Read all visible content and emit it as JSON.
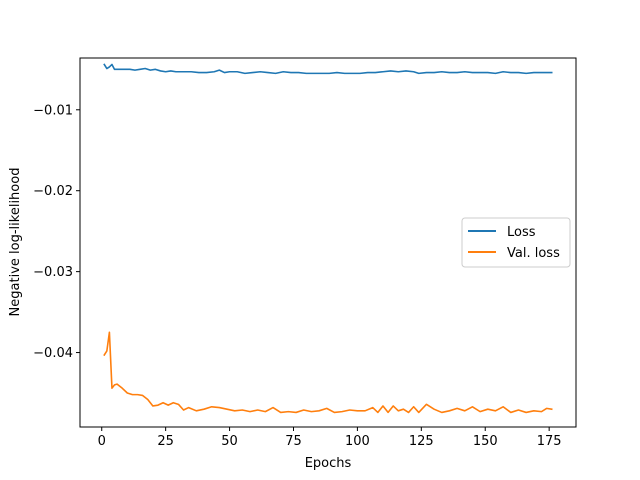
{
  "chart_data": {
    "type": "line",
    "title": "",
    "xlabel": "Epochs",
    "ylabel": "Negative log-likelihood",
    "xlim": [
      -8.5,
      185.5
    ],
    "ylim": [
      -0.0492,
      -0.0036
    ],
    "xticks": [
      0,
      25,
      50,
      75,
      100,
      125,
      150,
      175
    ],
    "xtick_labels": [
      "0",
      "25",
      "50",
      "75",
      "100",
      "125",
      "150",
      "175"
    ],
    "yticks": [
      -0.01,
      -0.02,
      -0.03,
      -0.04
    ],
    "ytick_labels": [
      "−0.01",
      "−0.02",
      "−0.03",
      "−0.04"
    ],
    "grid": false,
    "legend_position": "center-right",
    "series": [
      {
        "name": "Loss",
        "color": "#1f77b4",
        "points": [
          [
            1,
            -0.0044
          ],
          [
            2,
            -0.0049
          ],
          [
            3,
            -0.0047
          ],
          [
            4,
            -0.0044
          ],
          [
            5,
            -0.005
          ],
          [
            7,
            -0.005
          ],
          [
            9,
            -0.005
          ],
          [
            11,
            -0.005
          ],
          [
            13,
            -0.0051
          ],
          [
            15,
            -0.005
          ],
          [
            17,
            -0.0049
          ],
          [
            19,
            -0.0051
          ],
          [
            21,
            -0.005
          ],
          [
            23,
            -0.0052
          ],
          [
            25,
            -0.0053
          ],
          [
            27,
            -0.0052
          ],
          [
            29,
            -0.0053
          ],
          [
            32,
            -0.0053
          ],
          [
            35,
            -0.0053
          ],
          [
            38,
            -0.0054
          ],
          [
            41,
            -0.0054
          ],
          [
            44,
            -0.0053
          ],
          [
            46,
            -0.0051
          ],
          [
            48,
            -0.0054
          ],
          [
            50,
            -0.0053
          ],
          [
            53,
            -0.0053
          ],
          [
            56,
            -0.0055
          ],
          [
            59,
            -0.0054
          ],
          [
            62,
            -0.0053
          ],
          [
            65,
            -0.0054
          ],
          [
            68,
            -0.0055
          ],
          [
            71,
            -0.0053
          ],
          [
            74,
            -0.0054
          ],
          [
            77,
            -0.0054
          ],
          [
            80,
            -0.0055
          ],
          [
            83,
            -0.0055
          ],
          [
            86,
            -0.0055
          ],
          [
            89,
            -0.0055
          ],
          [
            92,
            -0.0054
          ],
          [
            95,
            -0.0055
          ],
          [
            98,
            -0.0055
          ],
          [
            101,
            -0.0055
          ],
          [
            104,
            -0.0054
          ],
          [
            107,
            -0.0054
          ],
          [
            110,
            -0.0053
          ],
          [
            113,
            -0.0052
          ],
          [
            116,
            -0.0053
          ],
          [
            119,
            -0.0052
          ],
          [
            122,
            -0.0053
          ],
          [
            124,
            -0.0055
          ],
          [
            127,
            -0.0054
          ],
          [
            130,
            -0.0054
          ],
          [
            133,
            -0.0053
          ],
          [
            136,
            -0.0054
          ],
          [
            139,
            -0.0054
          ],
          [
            142,
            -0.0053
          ],
          [
            145,
            -0.0054
          ],
          [
            148,
            -0.0054
          ],
          [
            151,
            -0.0054
          ],
          [
            154,
            -0.0055
          ],
          [
            157,
            -0.0053
          ],
          [
            160,
            -0.0054
          ],
          [
            163,
            -0.0054
          ],
          [
            166,
            -0.0055
          ],
          [
            169,
            -0.0054
          ],
          [
            172,
            -0.0054
          ],
          [
            176,
            -0.0054
          ]
        ]
      },
      {
        "name": "Val. loss",
        "color": "#ff7f0e",
        "points": [
          [
            1,
            -0.0403
          ],
          [
            2,
            -0.0398
          ],
          [
            3,
            -0.0375
          ],
          [
            4,
            -0.0444
          ],
          [
            5,
            -0.044
          ],
          [
            6,
            -0.0439
          ],
          [
            8,
            -0.0444
          ],
          [
            10,
            -0.045
          ],
          [
            12,
            -0.0452
          ],
          [
            14,
            -0.0452
          ],
          [
            16,
            -0.0453
          ],
          [
            18,
            -0.0458
          ],
          [
            20,
            -0.0466
          ],
          [
            22,
            -0.0465
          ],
          [
            24,
            -0.0462
          ],
          [
            26,
            -0.0465
          ],
          [
            28,
            -0.0462
          ],
          [
            30,
            -0.0464
          ],
          [
            32,
            -0.0471
          ],
          [
            34,
            -0.0468
          ],
          [
            37,
            -0.0472
          ],
          [
            40,
            -0.047
          ],
          [
            43,
            -0.0467
          ],
          [
            46,
            -0.0468
          ],
          [
            49,
            -0.047
          ],
          [
            52,
            -0.0472
          ],
          [
            55,
            -0.0471
          ],
          [
            58,
            -0.0473
          ],
          [
            61,
            -0.0471
          ],
          [
            64,
            -0.0473
          ],
          [
            67,
            -0.0468
          ],
          [
            70,
            -0.0474
          ],
          [
            73,
            -0.0473
          ],
          [
            76,
            -0.0474
          ],
          [
            79,
            -0.0471
          ],
          [
            82,
            -0.0473
          ],
          [
            85,
            -0.0472
          ],
          [
            88,
            -0.0469
          ],
          [
            91,
            -0.0474
          ],
          [
            94,
            -0.0473
          ],
          [
            97,
            -0.0471
          ],
          [
            100,
            -0.0472
          ],
          [
            103,
            -0.0472
          ],
          [
            106,
            -0.0468
          ],
          [
            108,
            -0.0474
          ],
          [
            110,
            -0.0466
          ],
          [
            112,
            -0.0474
          ],
          [
            114,
            -0.0466
          ],
          [
            116,
            -0.0472
          ],
          [
            118,
            -0.047
          ],
          [
            120,
            -0.0474
          ],
          [
            122,
            -0.0467
          ],
          [
            124,
            -0.0474
          ],
          [
            127,
            -0.0464
          ],
          [
            130,
            -0.047
          ],
          [
            133,
            -0.0474
          ],
          [
            136,
            -0.0472
          ],
          [
            139,
            -0.0469
          ],
          [
            142,
            -0.0472
          ],
          [
            145,
            -0.0467
          ],
          [
            148,
            -0.0473
          ],
          [
            151,
            -0.047
          ],
          [
            154,
            -0.0472
          ],
          [
            157,
            -0.0467
          ],
          [
            160,
            -0.0474
          ],
          [
            163,
            -0.0471
          ],
          [
            166,
            -0.0474
          ],
          [
            169,
            -0.0472
          ],
          [
            172,
            -0.0473
          ],
          [
            174,
            -0.0469
          ],
          [
            176,
            -0.047
          ]
        ]
      }
    ]
  }
}
